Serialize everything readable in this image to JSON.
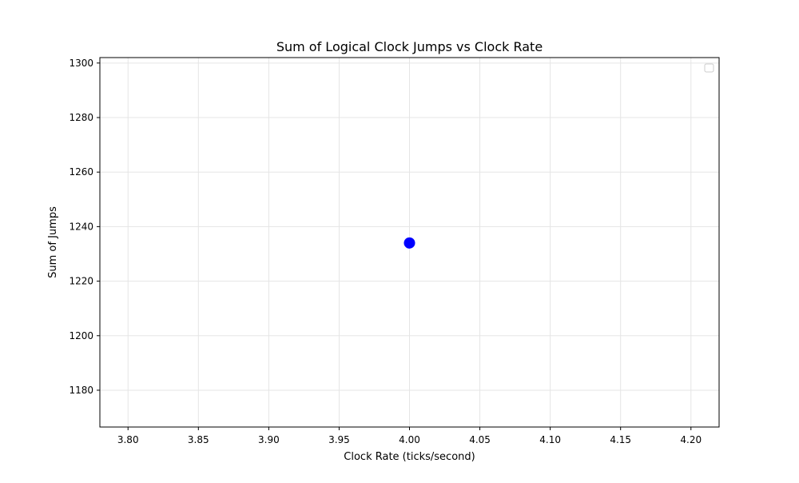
{
  "chart_data": {
    "type": "scatter",
    "title": "Sum of Logical Clock Jumps vs Clock Rate",
    "xlabel": "Clock Rate (ticks/second)",
    "ylabel": "Sum of Jumps",
    "xlim": [
      3.78,
      4.22
    ],
    "ylim": [
      1166.5,
      1302
    ],
    "xticks": [
      "3.80",
      "3.85",
      "3.90",
      "3.95",
      "4.00",
      "4.05",
      "4.10",
      "4.15",
      "4.20"
    ],
    "yticks": [
      "1180",
      "1200",
      "1220",
      "1240",
      "1260",
      "1280",
      "1300"
    ],
    "grid": true,
    "legend_position": "top-right",
    "legend_entries": [],
    "series": [
      {
        "x": [
          4.0
        ],
        "y": [
          1234
        ],
        "color": "#0000ff"
      }
    ]
  }
}
